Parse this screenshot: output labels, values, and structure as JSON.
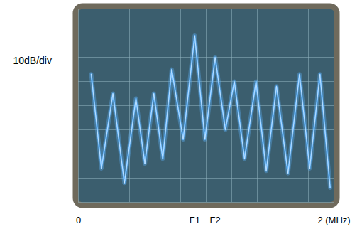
{
  "chart_data": {
    "type": "line",
    "ylabel": "10dB/div",
    "x": [
      0.1,
      0.18,
      0.27,
      0.36,
      0.45,
      0.52,
      0.59,
      0.66,
      0.73,
      0.82,
      0.91,
      0.99,
      1.07,
      1.15,
      1.22,
      1.3,
      1.39,
      1.47,
      1.55,
      1.64,
      1.73,
      1.81,
      1.89,
      1.97
    ],
    "values": [
      -27,
      -66,
      -35,
      -72,
      -37,
      -64,
      -35,
      -62,
      -25,
      -54,
      -11,
      -54,
      -20,
      -50,
      -30,
      -62,
      -30,
      -67,
      -32,
      -68,
      -27,
      -66,
      -27,
      -74
    ],
    "xlim": [
      0,
      2
    ],
    "xticks": [
      0,
      {
        "value": 0.91,
        "label": "F1"
      },
      {
        "value": 1.07,
        "label": "F2"
      },
      {
        "value": 2,
        "label": "2 (MHz)"
      }
    ],
    "ylim": [
      -80,
      0
    ],
    "yticks": [
      -80,
      -70,
      -60,
      -50,
      -40,
      -30,
      -20,
      -10,
      0
    ],
    "tick_labels": "x",
    "grid": true,
    "color": "#5fb4ff"
  }
}
